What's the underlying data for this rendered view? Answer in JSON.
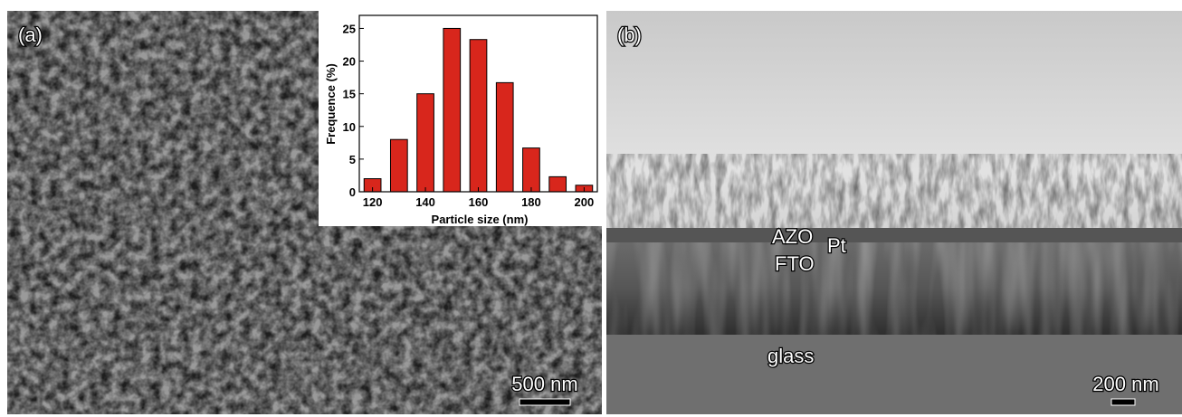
{
  "panel_a": {
    "label": "(a)",
    "scale_bar": "500 nm"
  },
  "panel_b": {
    "label": "(b)",
    "layers": [
      "AZO",
      "Pt",
      "FTO",
      "glass"
    ],
    "scale_bar": "200 nm"
  },
  "chart_data": {
    "type": "bar",
    "x": [
      120,
      130,
      140,
      150,
      160,
      170,
      180,
      190,
      200
    ],
    "values": [
      2,
      8,
      15,
      25,
      23.3,
      16.7,
      6.7,
      2.3,
      1
    ],
    "color": "#d8261c",
    "xlabel": "Particle size (nm)",
    "ylabel": "Frequence (%)",
    "xlim": [
      115,
      205
    ],
    "ylim": [
      0,
      27
    ],
    "xticks": [
      120,
      140,
      160,
      180,
      200
    ],
    "yticks": [
      0,
      5,
      10,
      15,
      20,
      25
    ]
  }
}
